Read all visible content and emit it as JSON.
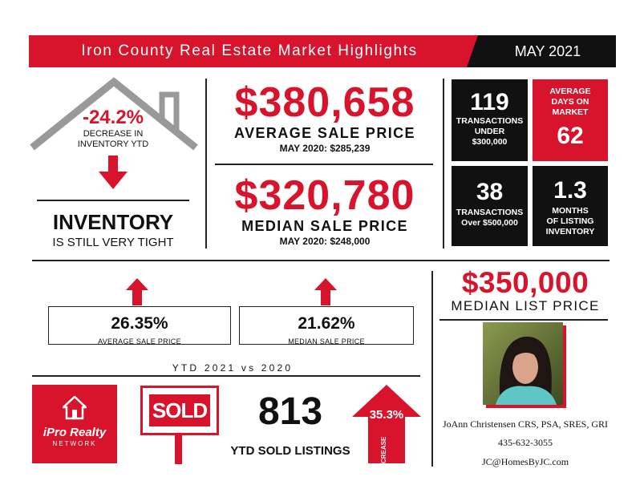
{
  "header": {
    "title": "Iron County Real Estate Market Highlights",
    "date": "MAY 2021"
  },
  "inventory": {
    "change": "-24.2%",
    "change_label_line1": "DECREASE IN",
    "change_label_line2": "INVENTORY YTD",
    "title": "INVENTORY",
    "subtitle": "IS STILL VERY TIGHT"
  },
  "average_sale": {
    "value": "$380,658",
    "label": "AVERAGE SALE PRICE",
    "prior": "MAY 2020: $285,239"
  },
  "median_sale": {
    "value": "$320,780",
    "label": "MEDIAN SALE PRICE",
    "prior": "MAY 2020: $248,000"
  },
  "stat_boxes": [
    {
      "value": "119",
      "label_lines": [
        "TRANSACTIONS",
        "UNDER",
        "$300,000"
      ]
    },
    {
      "value": "62",
      "label_lines": [
        "AVERAGE",
        "DAYS ON",
        "MARKET"
      ]
    },
    {
      "value": "38",
      "label_lines": [
        "TRANSACTIONS",
        "Over $500,000"
      ]
    },
    {
      "value": "1.3",
      "label_lines": [
        "MONTHS",
        "OF LISTING",
        "INVENTORY"
      ]
    }
  ],
  "ytd": {
    "avg_change": "26.35%",
    "avg_label": "AVERAGE SALE PRICE",
    "median_change": "21.62%",
    "median_label": "MEDIAN SALE PRICE",
    "caption": "YTD 2021 vs 2020"
  },
  "median_list": {
    "value": "$350,000",
    "label": "MEDIAN LIST PRICE"
  },
  "sold": {
    "sign": "SOLD",
    "count": "813",
    "label": "YTD SOLD LISTINGS",
    "increase_pct": "35.3%",
    "increase_label": "INCREASE"
  },
  "brand": {
    "name_line1": "iPro Realty",
    "name_line2": "NETWORK"
  },
  "agent": {
    "name": "JoAnn Christensen CRS, PSA, SRES, GRI",
    "phone": "435-632-3055",
    "email": "JC@HomesByJC.com"
  },
  "colors": {
    "accent": "#d7142b",
    "dark": "#111111"
  }
}
